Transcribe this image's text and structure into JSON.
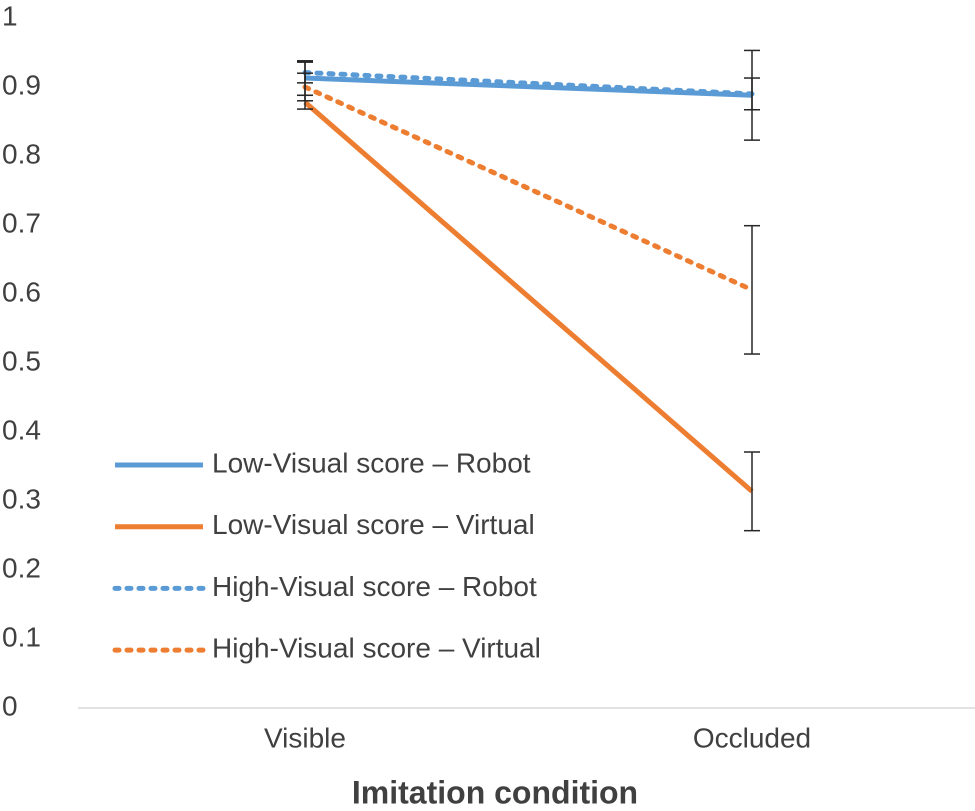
{
  "chart_data": {
    "type": "line",
    "xlabel": "Imitation condition",
    "categories": [
      "Visible",
      "Occluded"
    ],
    "ylim": [
      0,
      1
    ],
    "yticks": [
      0,
      0.1,
      0.2,
      0.3,
      0.4,
      0.5,
      0.6,
      0.7,
      0.8,
      0.9,
      1
    ],
    "grid": false,
    "legend": "center-left",
    "series": [
      {
        "name": "Low-Visual score – Robot",
        "color": "#5b9bd5",
        "style": "solid",
        "values": [
          0.913,
          0.888
        ],
        "errors": [
          0.025,
          0.065
        ]
      },
      {
        "name": "Low-Visual score – Virtual",
        "color": "#ed7d31",
        "style": "solid",
        "values": [
          0.878,
          0.314
        ],
        "errors": [
          0.01,
          0.057
        ]
      },
      {
        "name": "High-Visual score – Robot",
        "color": "#5b9bd5",
        "style": "dotted",
        "values": [
          0.921,
          0.89
        ],
        "errors": [
          0.015,
          0.023
        ]
      },
      {
        "name": "High-Visual score – Virtual",
        "color": "#ed7d31",
        "style": "dotted",
        "values": [
          0.9,
          0.606
        ],
        "errors": [
          0.02,
          0.093
        ]
      }
    ]
  }
}
